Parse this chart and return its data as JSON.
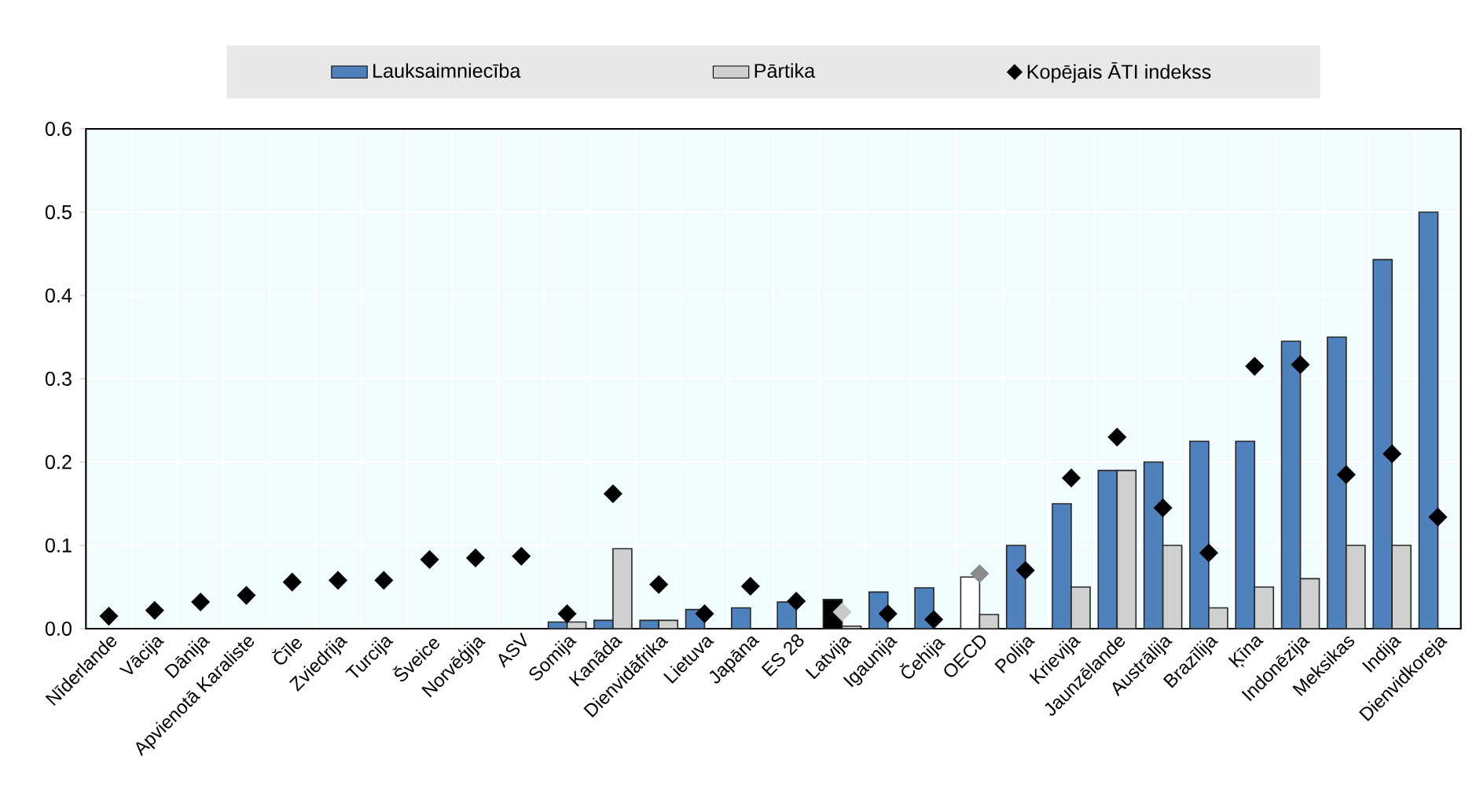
{
  "chart_data": {
    "type": "bar",
    "categories": [
      "Nīderlande",
      "Vācija",
      "Dānija",
      "Apvienotā Karaliste",
      "Čīle",
      "Zviedrija",
      "Turcija",
      "Šveice",
      "Norvēģija",
      "ASV",
      "Somija",
      "Kanāda",
      "Dienvidāfrika",
      "Lietuva",
      "Japāna",
      "ES 28",
      "Latvija",
      "Igaunija",
      "Čehija",
      "OECD",
      "Polija",
      "Krievija",
      "Jaunzēlande",
      "Austrālija",
      "Brazīlija",
      "Ķīna",
      "Indonēzija",
      "Meksikas",
      "Indija",
      "Dienvidkoreja"
    ],
    "series": [
      {
        "name": "Lauksaimniecība",
        "color": "#4f81bd",
        "colors": [
          "#4f81bd",
          "#4f81bd",
          "#4f81bd",
          "#4f81bd",
          "#4f81bd",
          "#4f81bd",
          "#4f81bd",
          "#4f81bd",
          "#4f81bd",
          "#4f81bd",
          "#4f81bd",
          "#4f81bd",
          "#4f81bd",
          "#4f81bd",
          "#4f81bd",
          "#4f81bd",
          "#000000",
          "#4f81bd",
          "#4f81bd",
          "#ffffff",
          "#4f81bd",
          "#4f81bd",
          "#4f81bd",
          "#4f81bd",
          "#4f81bd",
          "#4f81bd",
          "#4f81bd",
          "#4f81bd",
          "#4f81bd",
          "#4f81bd"
        ],
        "values": [
          null,
          null,
          null,
          null,
          null,
          null,
          null,
          null,
          null,
          null,
          0.008,
          0.01,
          0.01,
          0.023,
          0.025,
          0.032,
          0.035,
          0.044,
          0.049,
          0.062,
          0.1,
          0.15,
          0.19,
          0.2,
          0.225,
          0.225,
          0.345,
          0.35,
          0.443,
          0.5
        ]
      },
      {
        "name": "Pārtika",
        "color": "#d0d0d0",
        "values": [
          null,
          null,
          null,
          null,
          null,
          null,
          null,
          null,
          null,
          null,
          0.008,
          0.096,
          0.01,
          null,
          null,
          null,
          0.003,
          null,
          null,
          0.017,
          null,
          0.05,
          0.19,
          0.1,
          0.025,
          0.05,
          0.06,
          0.1,
          0.1,
          null
        ]
      },
      {
        "name": "Kopējais ĀTI indekss",
        "type": "scatter",
        "marker": "diamond",
        "color": "#000000",
        "colors": [
          "#000000",
          "#000000",
          "#000000",
          "#000000",
          "#000000",
          "#000000",
          "#000000",
          "#000000",
          "#000000",
          "#000000",
          "#000000",
          "#000000",
          "#000000",
          "#000000",
          "#000000",
          "#000000",
          "#c8c8c8",
          "#000000",
          "#000000",
          "#8c8c8c",
          "#000000",
          "#000000",
          "#000000",
          "#000000",
          "#000000",
          "#000000",
          "#000000",
          "#000000",
          "#000000",
          "#000000"
        ],
        "x": [
          "Nīderlande",
          "Vācija",
          "Dānija",
          "Apvienotā Karaliste",
          "Čīle",
          "Zviedrija",
          "Turcija",
          "Šveice",
          "Norvēģija",
          "ASV",
          "Somija",
          "Kanāda",
          "Dienvidāfrika",
          "Lietuva",
          "Japāna",
          "ES 28",
          "Latvija",
          "Igaunija",
          "Čehija",
          "OECD",
          "Polija",
          "Krievija",
          "Jaunzēlande",
          "Austrālija",
          "Brazīlija",
          "Ķīna",
          "Indonēzija",
          "Meksikas",
          "Indija",
          "Dienvidkoreja"
        ],
        "values": [
          0.015,
          0.022,
          0.032,
          0.04,
          0.056,
          0.058,
          0.058,
          0.083,
          0.085,
          0.087,
          0.018,
          0.162,
          0.053,
          0.018,
          0.051,
          0.033,
          0.02,
          0.018,
          0.011,
          0.066,
          0.07,
          0.181,
          0.23,
          0.145,
          0.091,
          0.315,
          0.317,
          0.185,
          0.21,
          0.134
        ]
      }
    ],
    "ylim": [
      0,
      0.6
    ],
    "yticks": [
      {
        "value": 0,
        "label": "0.0"
      },
      {
        "value": 0.1,
        "label": "0.1"
      },
      {
        "value": 0.2,
        "label": "0.2"
      },
      {
        "value": 0.3,
        "label": "0.3"
      },
      {
        "value": 0.4,
        "label": "0.4"
      },
      {
        "value": 0.5,
        "label": "0.5"
      },
      {
        "value": 0.6,
        "label": "0.6"
      }
    ],
    "grid": true,
    "legend": "top"
  }
}
